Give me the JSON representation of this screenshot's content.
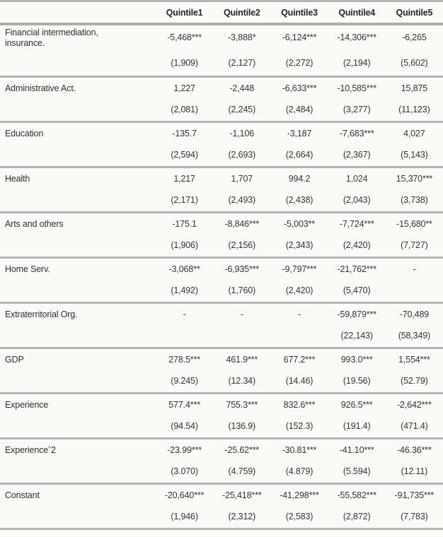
{
  "table": {
    "corner_label": "",
    "columns": [
      "Quintile1",
      "Quintile2",
      "Quintile3",
      "Quintile4",
      "Quintile5"
    ],
    "rows": [
      {
        "label": "Financial intermediation, insurance.",
        "coefs": [
          "-5,468***",
          "-3,888*",
          "-6,124***",
          "-14,306***",
          "-6,265"
        ],
        "ses": [
          "(1,909)",
          "(2,127)",
          "(2,272)",
          "(2,194)",
          "(5,602)"
        ]
      },
      {
        "label": "Administrative Act.",
        "coefs": [
          "1,227",
          "-2,448",
          "-6,633***",
          "-10,585***",
          "15,875"
        ],
        "ses": [
          "(2,081)",
          "(2,245)",
          "(2,484)",
          "(3,277)",
          "(11,123)"
        ]
      },
      {
        "label": "Education",
        "coefs": [
          "-135.7",
          "-1,106",
          "-3,187",
          "-7,683***",
          "4,027"
        ],
        "ses": [
          "(2,594)",
          "(2,693)",
          "(2,664)",
          "(2,367)",
          "(5,143)"
        ]
      },
      {
        "label": "Health",
        "coefs": [
          "1,217",
          "1,707",
          "994.2",
          "1,024",
          "15,370***"
        ],
        "ses": [
          "(2,171)",
          "(2,493)",
          "(2,438)",
          "(2,043)",
          "(3,738)"
        ]
      },
      {
        "label": "Arts and others",
        "coefs": [
          "-175.1",
          "-8,846***",
          "-5,003**",
          "-7,724***",
          "-15,680**"
        ],
        "ses": [
          "(1,906)",
          "(2,156)",
          "(2,343)",
          "(2,420)",
          "(7,727)"
        ]
      },
      {
        "label": "Home Serv.",
        "coefs": [
          "-3,068**",
          "-6,935***",
          "-9,797***",
          "-21,762***",
          "-"
        ],
        "ses": [
          "(1,492)",
          "(1,760)",
          "(2,420)",
          "(5,470)",
          ""
        ]
      },
      {
        "label": "Extraterritorial Org.",
        "coefs": [
          "-",
          "-",
          "-",
          "-59,879***",
          "-70,489"
        ],
        "ses": [
          "",
          "",
          "",
          "(22,143)",
          "(58,349)"
        ]
      },
      {
        "label": "GDP",
        "coefs": [
          "278.5***",
          "461.9***",
          "677.2***",
          "993.0***",
          "1,554***"
        ],
        "ses": [
          "(9.245)",
          "(12.34)",
          "(14.46)",
          "(19.56)",
          "(52.79)"
        ]
      },
      {
        "label": "Experience",
        "coefs": [
          "577.4***",
          "755.3***",
          "832.6***",
          "926.5***",
          "-2,642***"
        ],
        "ses": [
          "(94.54)",
          "(136.9)",
          "(152.3)",
          "(191.4)",
          "(471.4)"
        ]
      },
      {
        "label": "Experienceˆ2",
        "coefs": [
          "-23.99***",
          "-25.62***",
          "-30.81***",
          "-41.10***",
          "-46.36***"
        ],
        "ses": [
          "(3.070)",
          "(4.759)",
          "(4.879)",
          "(5.594)",
          "(12.11)"
        ]
      },
      {
        "label": "Constant",
        "coefs": [
          "-20,640***",
          "-25,418***",
          "-41,298***",
          "-55,582***",
          "-91,735***"
        ],
        "ses": [
          "(1,946)",
          "(2,312)",
          "(2,583)",
          "(2,872)",
          "(7,783)"
        ]
      }
    ]
  },
  "colors": {
    "background": "#fbfaf6",
    "rule": "#b3b3b2",
    "text": "#333231",
    "header_text": "#242424"
  }
}
